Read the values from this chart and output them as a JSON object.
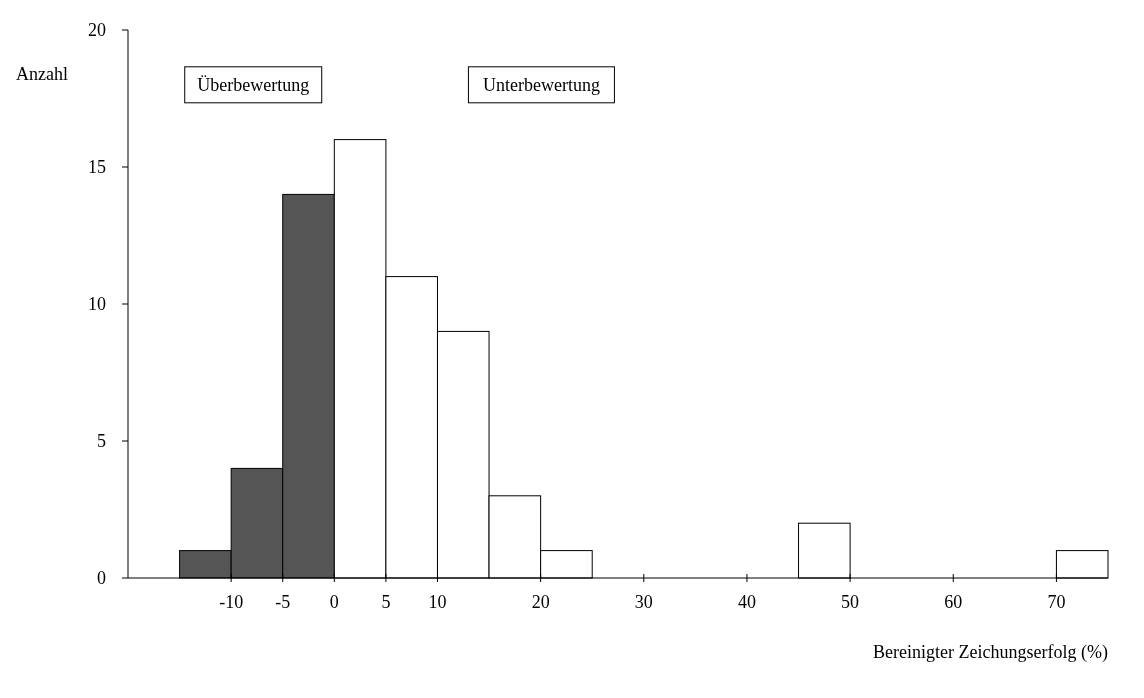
{
  "chart_data": {
    "type": "histogram",
    "xlabel": "Bereinigter Zeichungserfolg (%)",
    "ylabel": "Anzahl",
    "annotations": [
      "Überbewertung",
      "Unterbewertung"
    ],
    "bins": [
      -15,
      -10,
      -5,
      0,
      5,
      10,
      15,
      20,
      25,
      30,
      35,
      40,
      45,
      50,
      55,
      60,
      65,
      70,
      75
    ],
    "values": [
      1,
      4,
      14,
      16,
      11,
      9,
      3,
      1,
      0,
      0,
      0,
      0,
      2,
      0,
      0,
      0,
      0,
      1
    ],
    "colors": [
      "#555555",
      "#555555",
      "#555555",
      "#ffffff",
      "#ffffff",
      "#ffffff",
      "#ffffff",
      "#ffffff",
      "#ffffff",
      "#ffffff",
      "#ffffff",
      "#ffffff",
      "#ffffff",
      "#ffffff",
      "#ffffff",
      "#ffffff",
      "#ffffff",
      "#ffffff"
    ],
    "xlim": [
      -20,
      75
    ],
    "xticks": [
      -10,
      -5,
      0,
      5,
      10,
      20,
      30,
      40,
      50,
      60,
      70
    ],
    "ylim": [
      0,
      20
    ],
    "yticks": [
      0,
      5,
      10,
      15,
      20
    ],
    "grid": false
  }
}
